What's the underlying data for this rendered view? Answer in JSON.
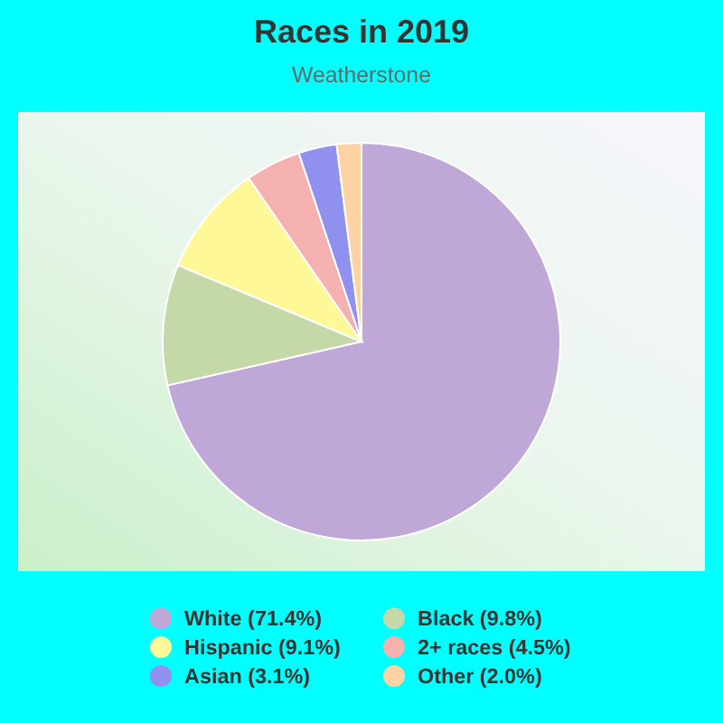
{
  "chart_data": {
    "type": "pie",
    "title": "Races in 2019",
    "subtitle": "Weatherstone",
    "categories": [
      "White (71.4%)",
      "Black (9.8%)",
      "Hispanic (9.1%)",
      "2+ races (4.5%)",
      "Asian (3.1%)",
      "Other (2.0%)"
    ],
    "values": [
      71.4,
      9.8,
      9.1,
      4.5,
      3.1,
      2.0
    ],
    "colors": [
      "#bfa7d8",
      "#c5d8a8",
      "#fff899",
      "#f5b0b0",
      "#9090ee",
      "#fdd3a5"
    ],
    "legend": "bottom"
  }
}
